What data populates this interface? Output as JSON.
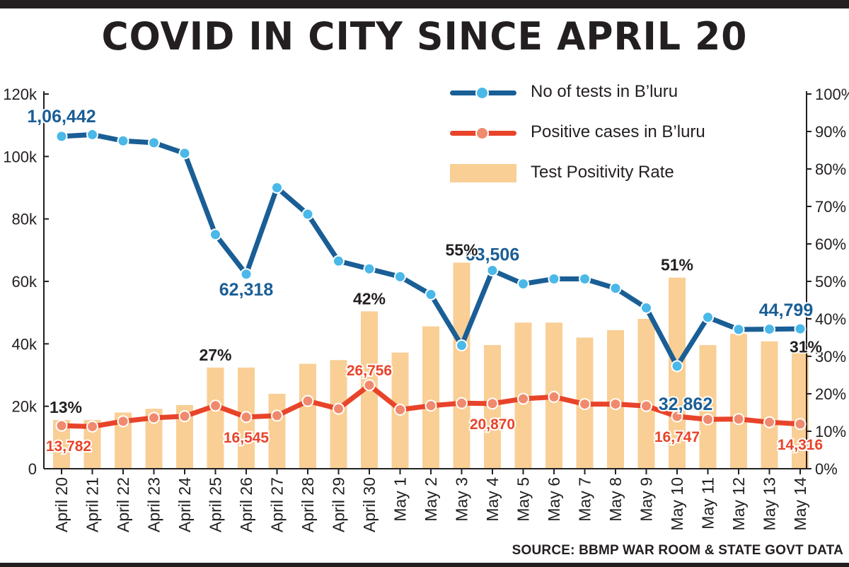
{
  "title": "COVID IN CITY SINCE APRIL 20",
  "source": "SOURCE: BBMP WAR ROOM & STATE GOVT DATA",
  "legend": [
    {
      "label": "No of tests in B’luru",
      "kind": "line",
      "color": "#1a5e96"
    },
    {
      "label": "Positive cases in B’luru",
      "kind": "line",
      "color": "#e8442a"
    },
    {
      "label": "Test Positivity Rate",
      "kind": "bar",
      "color": "#f9cf95"
    }
  ],
  "chart_data": {
    "type": "bar+line",
    "categories": [
      "April 20",
      "April 21",
      "April 22",
      "April 23",
      "April 24",
      "April 25",
      "April 26",
      "April 27",
      "April 28",
      "April 29",
      "April 30",
      "May 1",
      "May 2",
      "May 3",
      "May 4",
      "May 5",
      "May 6",
      "May 7",
      "May 8",
      "May 9",
      "May 10",
      "May 11",
      "May 12",
      "May 13",
      "May 14"
    ],
    "left_axis": {
      "ylim": [
        0,
        120000
      ],
      "ticks": [
        0,
        20000,
        40000,
        60000,
        80000,
        100000,
        120000
      ],
      "tick_labels": [
        "0",
        "20k",
        "40k",
        "60k",
        "80k",
        "100k",
        "120k"
      ]
    },
    "right_axis": {
      "ylim": [
        0,
        100
      ],
      "ticks": [
        0,
        10,
        20,
        30,
        40,
        50,
        60,
        70,
        80,
        90,
        100
      ],
      "tick_labels": [
        "0%",
        "10%",
        "20%",
        "30%",
        "40%",
        "50%",
        "60%",
        "70%",
        "80%",
        "90%",
        "100%"
      ]
    },
    "series": [
      {
        "name": "No of tests in B’luru",
        "type": "line",
        "axis": "left",
        "color": "#1a5e96",
        "values": [
          106442,
          107000,
          105000,
          104400,
          101000,
          75000,
          62318,
          90000,
          81500,
          66500,
          64000,
          61500,
          55800,
          39500,
          63506,
          59200,
          60800,
          60800,
          57800,
          51500,
          32862,
          48500,
          44600,
          44700,
          44799
        ]
      },
      {
        "name": "Positive cases in B’luru",
        "type": "line",
        "axis": "left",
        "color": "#e8442a",
        "values": [
          13782,
          13500,
          15200,
          16300,
          16800,
          20200,
          16545,
          17000,
          21700,
          19200,
          26756,
          18900,
          20200,
          21000,
          20870,
          22400,
          23000,
          20700,
          20700,
          20100,
          16747,
          15800,
          15900,
          14900,
          14316
        ]
      },
      {
        "name": "Test Positivity Rate",
        "type": "bar",
        "axis": "right",
        "color": "#f9cf95",
        "values": [
          13,
          13,
          15,
          16,
          17,
          27,
          27,
          20,
          28,
          29,
          42,
          31,
          38,
          55,
          33,
          39,
          39,
          35,
          37,
          40,
          51,
          33,
          36,
          34,
          31
        ]
      }
    ],
    "annotations": {
      "tests": [
        {
          "index": 0,
          "text": "1,06,442"
        },
        {
          "index": 6,
          "text": "62,318"
        },
        {
          "index": 14,
          "text": "63,506"
        },
        {
          "index": 20,
          "text": "32,862"
        },
        {
          "index": 24,
          "text": "44,799"
        }
      ],
      "cases": [
        {
          "index": 0,
          "text": "13,782"
        },
        {
          "index": 6,
          "text": "16,545"
        },
        {
          "index": 10,
          "text": "26,756"
        },
        {
          "index": 14,
          "text": "20,870"
        },
        {
          "index": 20,
          "text": "16,747"
        },
        {
          "index": 24,
          "text": "14,316"
        }
      ],
      "rate": [
        {
          "index": 0,
          "text": "13%"
        },
        {
          "index": 5,
          "text": "27%"
        },
        {
          "index": 10,
          "text": "42%"
        },
        {
          "index": 13,
          "text": "55%"
        },
        {
          "index": 20,
          "text": "51%"
        },
        {
          "index": 24,
          "text": "31%"
        }
      ]
    }
  }
}
